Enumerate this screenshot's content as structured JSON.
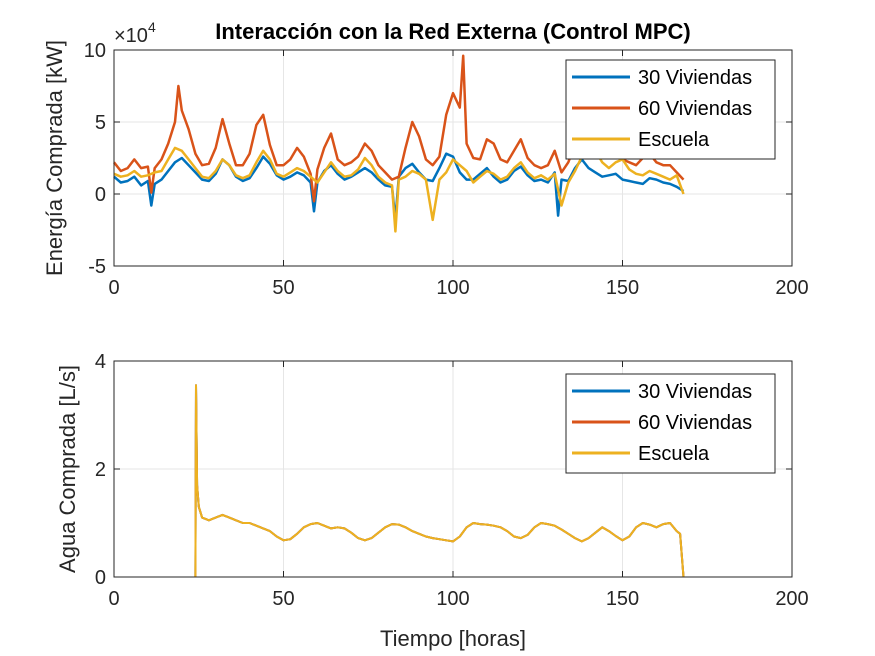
{
  "chart_data": [
    {
      "type": "line",
      "title": "Interacción con la Red Externa (Control MPC)",
      "ylabel": "Energía Comprada [kW]",
      "xlabel": "",
      "exponent_label": "×10",
      "exponent_power": "4",
      "xlim": [
        0,
        200
      ],
      "ylim": [
        -5,
        10
      ],
      "xticks": [
        0,
        50,
        100,
        150,
        200
      ],
      "yticks": [
        -5,
        0,
        5,
        10
      ],
      "grid": true,
      "legend": "top-right",
      "series": [
        {
          "name": "30 Viviendas",
          "color": "#0072BD",
          "x": [
            0,
            2,
            4,
            6,
            8,
            10,
            11,
            12,
            14,
            16,
            18,
            20,
            22,
            24,
            26,
            28,
            30,
            32,
            34,
            36,
            38,
            40,
            42,
            44,
            46,
            48,
            50,
            52,
            54,
            56,
            58,
            59,
            60,
            62,
            64,
            66,
            68,
            70,
            72,
            74,
            76,
            78,
            80,
            82,
            83,
            84,
            86,
            88,
            90,
            92,
            94,
            96,
            98,
            100,
            102,
            104,
            106,
            108,
            110,
            112,
            114,
            116,
            118,
            120,
            122,
            124,
            126,
            128,
            130,
            131,
            132,
            134,
            136,
            138,
            140,
            142,
            144,
            146,
            148,
            150,
            152,
            154,
            156,
            158,
            160,
            162,
            164,
            166,
            168
          ],
          "values": [
            1.2,
            0.8,
            0.9,
            1.2,
            0.6,
            0.9,
            -0.8,
            0.7,
            1.0,
            1.6,
            2.2,
            2.5,
            2.0,
            1.5,
            1.0,
            0.9,
            1.4,
            2.4,
            2.0,
            1.2,
            0.9,
            1.1,
            1.8,
            2.6,
            2.1,
            1.3,
            1.0,
            1.2,
            1.5,
            1.3,
            0.8,
            -1.2,
            0.8,
            1.6,
            2.0,
            1.4,
            1.0,
            1.2,
            1.5,
            1.8,
            1.5,
            1.0,
            0.6,
            0.5,
            -1.8,
            1.2,
            1.8,
            2.1,
            1.5,
            1.0,
            0.9,
            1.8,
            2.8,
            2.6,
            1.5,
            1.0,
            1.0,
            1.4,
            1.8,
            1.2,
            0.8,
            1.0,
            1.6,
            1.9,
            1.3,
            0.9,
            1.0,
            0.8,
            1.5,
            -1.5,
            1.0,
            0.9,
            1.8,
            2.4,
            1.8,
            1.5,
            1.2,
            1.3,
            1.4,
            1.0,
            0.9,
            0.8,
            0.7,
            1.1,
            1.0,
            0.8,
            0.7,
            0.5,
            0.2
          ]
        },
        {
          "name": "60 Viviendas",
          "color": "#D95319",
          "x": [
            0,
            2,
            4,
            6,
            8,
            10,
            11,
            12,
            14,
            16,
            18,
            19,
            20,
            22,
            24,
            26,
            28,
            30,
            32,
            34,
            36,
            38,
            40,
            42,
            44,
            46,
            48,
            50,
            52,
            54,
            56,
            58,
            59,
            60,
            62,
            64,
            66,
            68,
            70,
            72,
            74,
            76,
            78,
            80,
            82,
            84,
            86,
            88,
            90,
            92,
            94,
            96,
            98,
            100,
            102,
            103,
            104,
            106,
            108,
            110,
            112,
            114,
            116,
            118,
            120,
            122,
            124,
            126,
            128,
            130,
            132,
            134,
            136,
            138,
            140,
            142,
            144,
            146,
            148,
            150,
            152,
            154,
            156,
            158,
            160,
            162,
            164,
            166,
            168
          ],
          "values": [
            2.2,
            1.6,
            1.8,
            2.4,
            1.8,
            1.9,
            0.1,
            1.8,
            2.4,
            3.5,
            5.0,
            7.5,
            5.8,
            4.5,
            2.8,
            2.0,
            2.1,
            3.2,
            5.2,
            3.5,
            2.0,
            2.0,
            2.8,
            4.8,
            5.5,
            3.4,
            2.0,
            2.0,
            2.4,
            3.2,
            2.6,
            1.4,
            -0.5,
            1.7,
            3.2,
            4.2,
            2.4,
            2.0,
            2.2,
            2.6,
            3.5,
            3.0,
            2.0,
            1.5,
            1.0,
            1.2,
            3.2,
            5.0,
            4.0,
            2.4,
            2.0,
            2.6,
            5.5,
            7.0,
            6.0,
            9.6,
            3.5,
            2.5,
            2.4,
            3.8,
            3.5,
            2.4,
            2.2,
            3.0,
            3.8,
            2.5,
            2.0,
            1.8,
            2.0,
            3.0,
            1.5,
            2.2,
            3.4,
            5.2,
            3.6,
            3.0,
            2.6,
            3.2,
            3.5,
            2.4,
            2.2,
            2.0,
            2.5,
            2.8,
            2.2,
            2.0,
            2.0,
            1.5,
            1.0
          ]
        },
        {
          "name": "Escuela",
          "color": "#EDB120",
          "x": [
            0,
            2,
            4,
            6,
            8,
            10,
            12,
            14,
            16,
            18,
            20,
            22,
            24,
            26,
            28,
            30,
            32,
            34,
            36,
            38,
            40,
            42,
            44,
            46,
            48,
            50,
            52,
            54,
            56,
            58,
            60,
            62,
            64,
            66,
            68,
            70,
            72,
            74,
            76,
            78,
            80,
            82,
            83,
            84,
            86,
            88,
            90,
            92,
            94,
            96,
            98,
            100,
            102,
            104,
            106,
            108,
            110,
            112,
            114,
            116,
            118,
            120,
            122,
            124,
            126,
            128,
            130,
            132,
            134,
            136,
            138,
            140,
            142,
            144,
            146,
            148,
            150,
            152,
            154,
            156,
            158,
            160,
            162,
            164,
            166,
            168
          ],
          "values": [
            1.4,
            1.2,
            1.3,
            1.6,
            1.2,
            1.3,
            1.5,
            1.6,
            2.4,
            3.2,
            3.0,
            2.4,
            1.8,
            1.2,
            1.1,
            1.6,
            2.4,
            2.0,
            1.3,
            1.1,
            1.3,
            2.2,
            3.0,
            2.4,
            1.4,
            1.2,
            1.5,
            1.8,
            1.6,
            1.2,
            0.8,
            1.5,
            2.2,
            1.6,
            1.2,
            1.3,
            1.7,
            2.5,
            2.0,
            1.2,
            0.8,
            0.6,
            -2.6,
            1.0,
            1.2,
            1.6,
            1.4,
            1.0,
            -1.8,
            1.0,
            1.5,
            2.4,
            2.0,
            1.6,
            0.8,
            1.2,
            1.6,
            1.4,
            1.0,
            1.2,
            1.8,
            2.2,
            1.5,
            1.1,
            1.3,
            1.0,
            1.4,
            -0.8,
            0.8,
            1.6,
            2.6,
            4.2,
            3.0,
            2.2,
            1.8,
            2.2,
            2.4,
            1.7,
            1.4,
            1.3,
            1.6,
            1.4,
            1.2,
            1.0,
            1.3,
            0.0
          ]
        }
      ]
    },
    {
      "type": "line",
      "title": "",
      "ylabel": "Agua Comprada [L/s]",
      "xlabel": "Tiempo [horas]",
      "xlim": [
        0,
        200
      ],
      "ylim": [
        0,
        4
      ],
      "xticks": [
        0,
        50,
        100,
        150,
        200
      ],
      "yticks": [
        0,
        2,
        4
      ],
      "grid": true,
      "legend": "top-right",
      "series": [
        {
          "name": "30 Viviendas",
          "color": "#0072BD",
          "x": [
            24,
            24.2,
            24.5,
            25,
            26,
            28,
            30,
            32,
            34,
            36,
            38,
            40,
            42,
            44,
            46,
            48,
            50,
            52,
            54,
            56,
            58,
            60,
            62,
            64,
            66,
            68,
            70,
            72,
            74,
            76,
            78,
            80,
            82,
            84,
            86,
            88,
            90,
            92,
            94,
            96,
            98,
            100,
            102,
            104,
            106,
            108,
            110,
            112,
            114,
            116,
            118,
            120,
            122,
            124,
            126,
            128,
            130,
            132,
            134,
            136,
            138,
            140,
            142,
            144,
            146,
            148,
            150,
            152,
            154,
            156,
            158,
            160,
            162,
            164,
            166,
            167,
            168
          ],
          "values": [
            0,
            3.55,
            1.7,
            1.3,
            1.1,
            1.05,
            1.1,
            1.15,
            1.1,
            1.05,
            1.0,
            1.0,
            0.95,
            0.9,
            0.85,
            0.75,
            0.68,
            0.7,
            0.8,
            0.92,
            0.98,
            1.0,
            0.95,
            0.9,
            0.92,
            0.9,
            0.82,
            0.72,
            0.68,
            0.72,
            0.82,
            0.92,
            0.98,
            0.97,
            0.92,
            0.85,
            0.8,
            0.75,
            0.72,
            0.7,
            0.68,
            0.66,
            0.75,
            0.92,
            1.0,
            0.98,
            0.97,
            0.95,
            0.92,
            0.85,
            0.75,
            0.72,
            0.78,
            0.92,
            1.0,
            0.98,
            0.95,
            0.88,
            0.8,
            0.72,
            0.66,
            0.72,
            0.82,
            0.92,
            0.85,
            0.76,
            0.68,
            0.75,
            0.92,
            1.0,
            0.97,
            0.92,
            0.98,
            1.0,
            0.85,
            0.8,
            0
          ]
        },
        {
          "name": "60 Viviendas",
          "color": "#D95319",
          "x": [
            24,
            24.2,
            24.5,
            25,
            26,
            28,
            30,
            32,
            34,
            36,
            38,
            40,
            42,
            44,
            46,
            48,
            50,
            52,
            54,
            56,
            58,
            60,
            62,
            64,
            66,
            68,
            70,
            72,
            74,
            76,
            78,
            80,
            82,
            84,
            86,
            88,
            90,
            92,
            94,
            96,
            98,
            100,
            102,
            104,
            106,
            108,
            110,
            112,
            114,
            116,
            118,
            120,
            122,
            124,
            126,
            128,
            130,
            132,
            134,
            136,
            138,
            140,
            142,
            144,
            146,
            148,
            150,
            152,
            154,
            156,
            158,
            160,
            162,
            164,
            166,
            167,
            168
          ],
          "values": [
            0,
            3.55,
            1.7,
            1.3,
            1.1,
            1.05,
            1.1,
            1.15,
            1.1,
            1.05,
            1.0,
            1.0,
            0.95,
            0.9,
            0.85,
            0.75,
            0.68,
            0.7,
            0.8,
            0.92,
            0.98,
            1.0,
            0.95,
            0.9,
            0.92,
            0.9,
            0.82,
            0.72,
            0.68,
            0.72,
            0.82,
            0.92,
            0.98,
            0.97,
            0.92,
            0.85,
            0.8,
            0.75,
            0.72,
            0.7,
            0.68,
            0.66,
            0.75,
            0.92,
            1.0,
            0.98,
            0.97,
            0.95,
            0.92,
            0.85,
            0.75,
            0.72,
            0.78,
            0.92,
            1.0,
            0.98,
            0.95,
            0.88,
            0.8,
            0.72,
            0.66,
            0.72,
            0.82,
            0.92,
            0.85,
            0.76,
            0.68,
            0.75,
            0.92,
            1.0,
            0.97,
            0.92,
            0.98,
            1.0,
            0.85,
            0.8,
            0
          ]
        },
        {
          "name": "Escuela",
          "color": "#EDB120",
          "x": [
            24,
            24.2,
            24.5,
            25,
            26,
            28,
            30,
            32,
            34,
            36,
            38,
            40,
            42,
            44,
            46,
            48,
            50,
            52,
            54,
            56,
            58,
            60,
            62,
            64,
            66,
            68,
            70,
            72,
            74,
            76,
            78,
            80,
            82,
            84,
            86,
            88,
            90,
            92,
            94,
            96,
            98,
            100,
            102,
            104,
            106,
            108,
            110,
            112,
            114,
            116,
            118,
            120,
            122,
            124,
            126,
            128,
            130,
            132,
            134,
            136,
            138,
            140,
            142,
            144,
            146,
            148,
            150,
            152,
            154,
            156,
            158,
            160,
            162,
            164,
            166,
            167,
            168
          ],
          "values": [
            0,
            3.55,
            1.7,
            1.3,
            1.1,
            1.05,
            1.1,
            1.15,
            1.1,
            1.05,
            1.0,
            1.0,
            0.95,
            0.9,
            0.85,
            0.75,
            0.68,
            0.7,
            0.8,
            0.92,
            0.98,
            1.0,
            0.95,
            0.9,
            0.92,
            0.9,
            0.82,
            0.72,
            0.68,
            0.72,
            0.82,
            0.92,
            0.98,
            0.97,
            0.92,
            0.85,
            0.8,
            0.75,
            0.72,
            0.7,
            0.68,
            0.66,
            0.75,
            0.92,
            1.0,
            0.98,
            0.97,
            0.95,
            0.92,
            0.85,
            0.75,
            0.72,
            0.78,
            0.92,
            1.0,
            0.98,
            0.95,
            0.88,
            0.8,
            0.72,
            0.66,
            0.72,
            0.82,
            0.92,
            0.85,
            0.76,
            0.68,
            0.75,
            0.92,
            1.0,
            0.97,
            0.92,
            0.98,
            1.0,
            0.85,
            0.8,
            0
          ]
        }
      ]
    }
  ]
}
